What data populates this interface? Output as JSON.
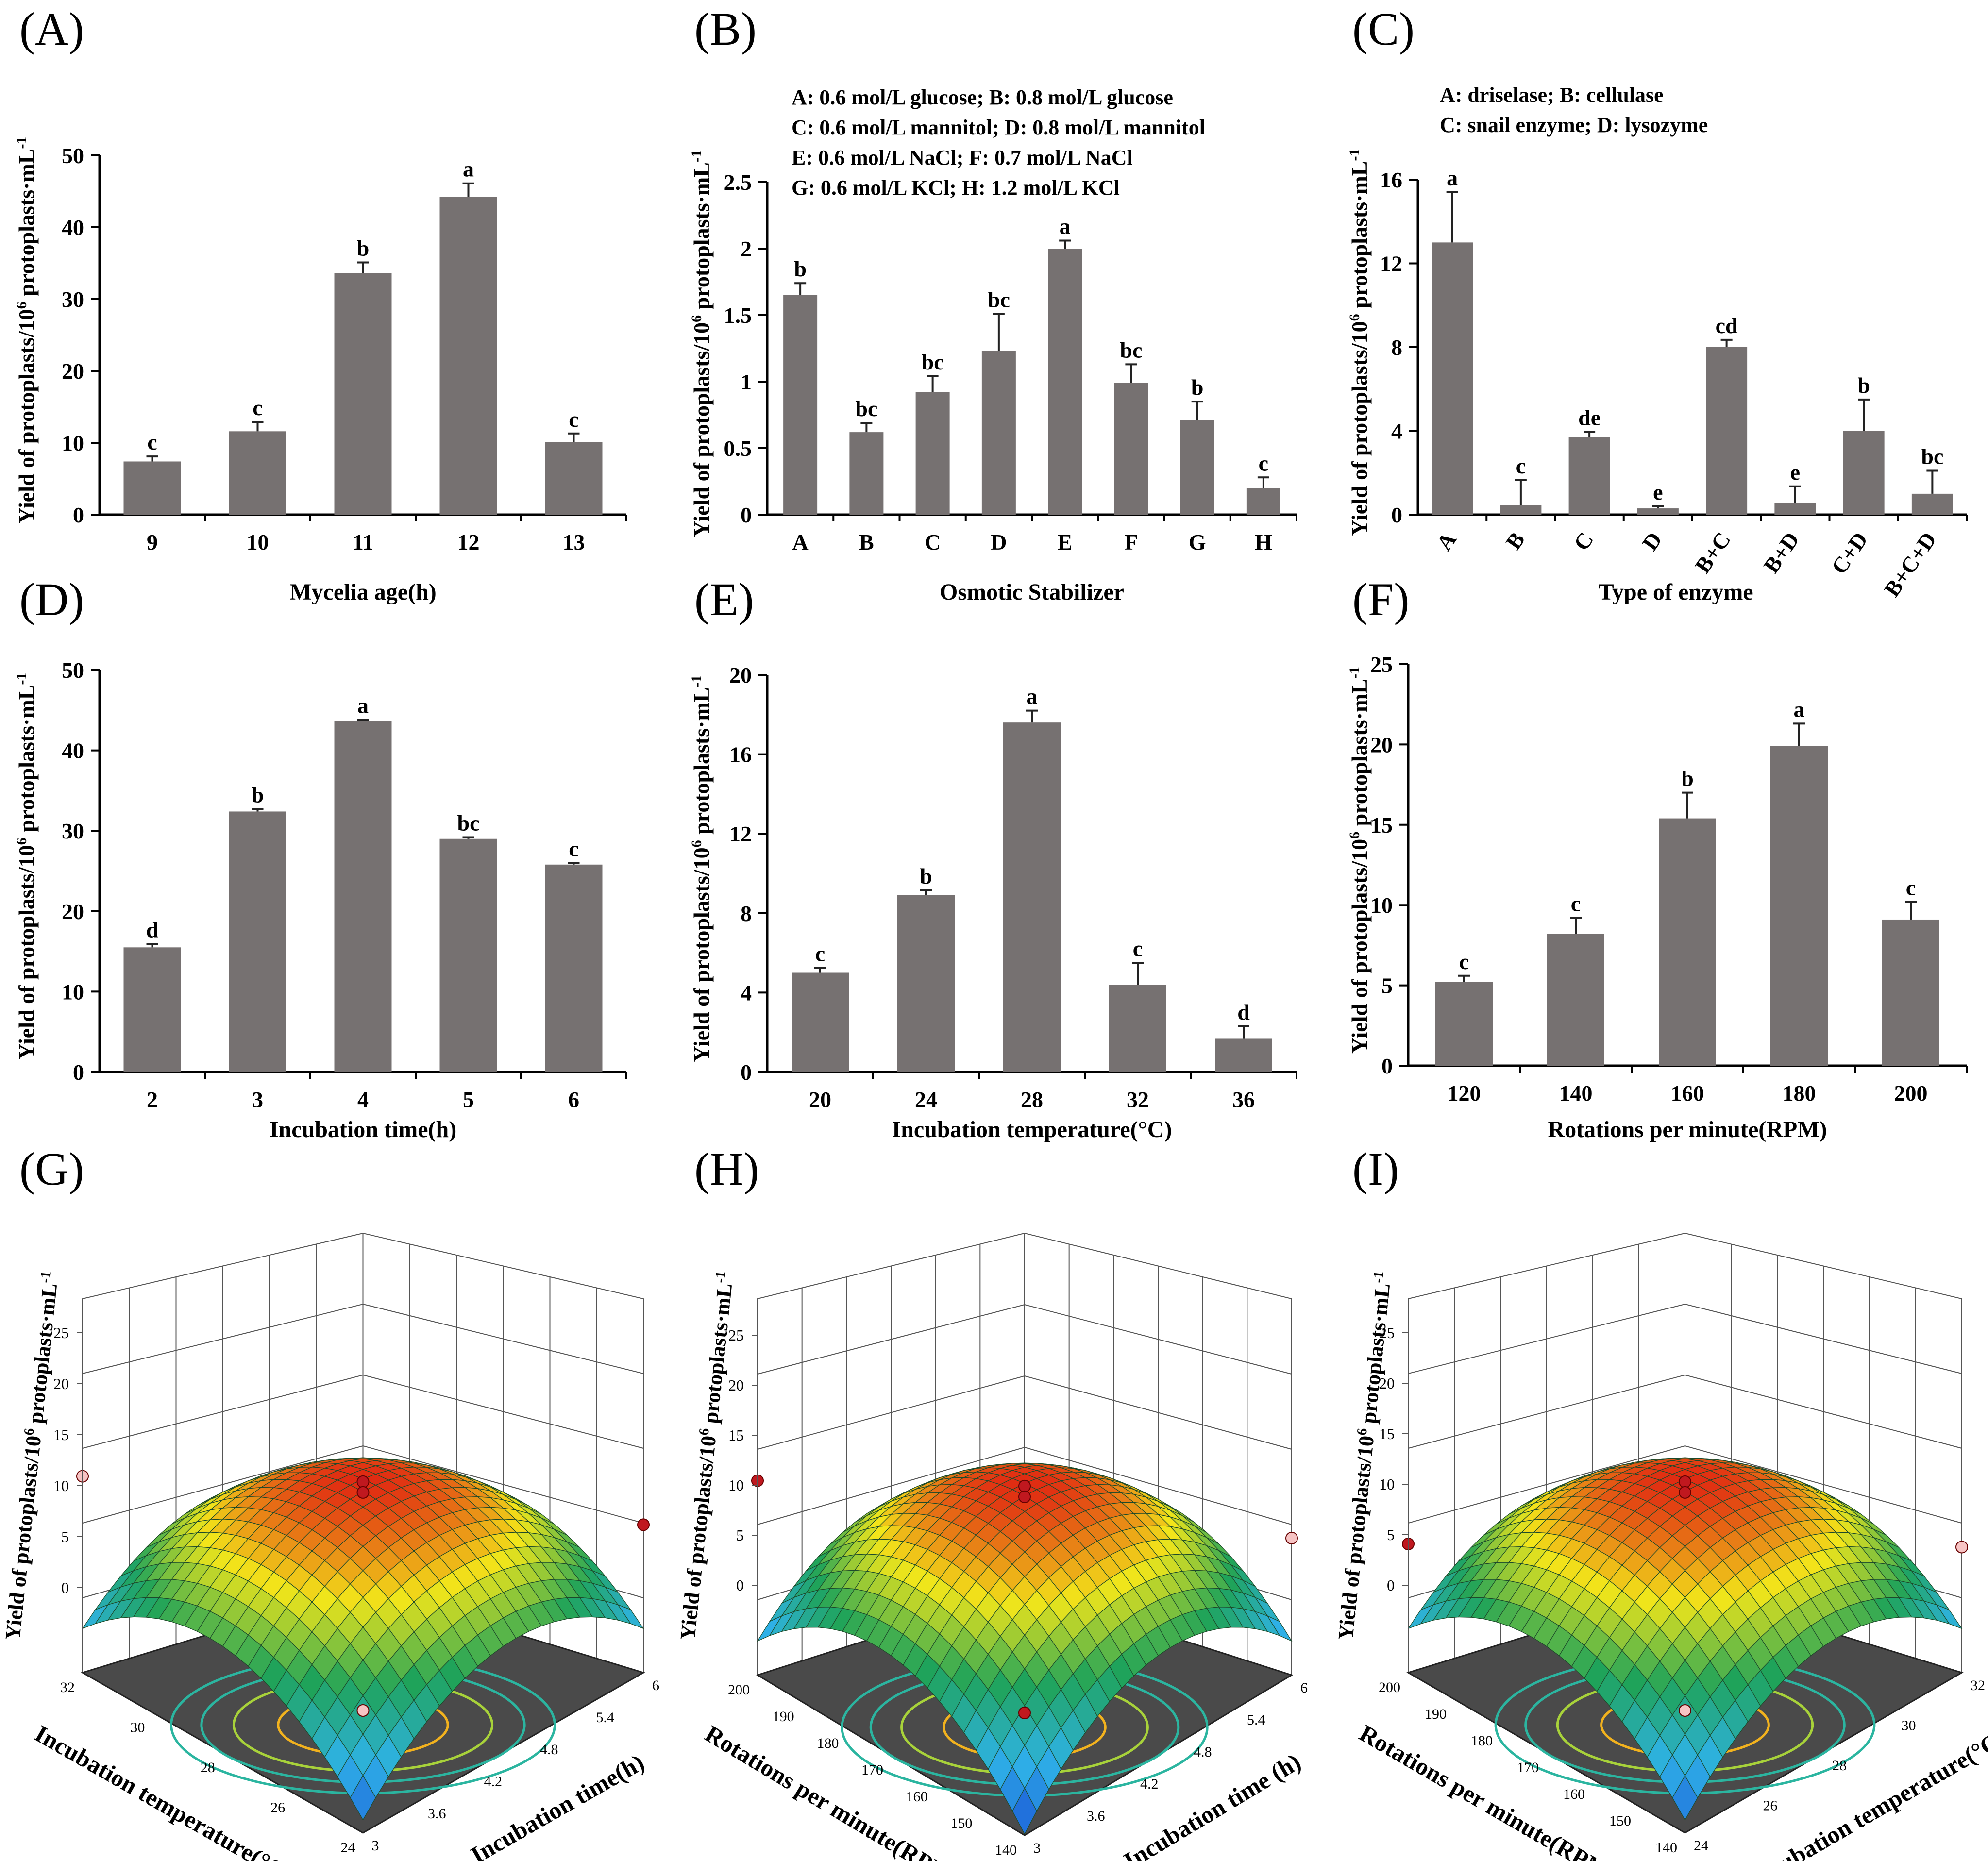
{
  "y_title": "Yield of protoplasts/10",
  "y_title_sup": "6",
  "y_title_tail": " protoplasts·mL",
  "y_title_tail_sup": "-1",
  "colors": {
    "bar": "#767171",
    "surface_low": "#1a4fd6",
    "surface_mid": "#2fb3e8",
    "surface_green": "#1fa35a",
    "surface_yellow": "#f2e61a",
    "surface_high": "#e02a12",
    "floor": "#4a4a4a",
    "contour_inner": "#f2b21e",
    "contour_mid": "#a8d23a",
    "contour_outer": "#2bb5a0",
    "marker_dark": "#c0181f",
    "marker_light": "#f7c4c4"
  },
  "chart_data": [
    {
      "panel": "(A)",
      "type": "bar",
      "categories": [
        "9",
        "10",
        "11",
        "12",
        "13"
      ],
      "values": [
        7.4,
        11.6,
        33.6,
        44.2,
        10.1
      ],
      "errors": [
        0.7,
        1.3,
        1.5,
        1.9,
        1.2
      ],
      "letters": [
        "c",
        "c",
        "b",
        "a",
        "c"
      ],
      "xlabel": "Mycelia age(h)",
      "ylim": [
        0,
        50
      ],
      "yticks": [
        "0",
        "10",
        "20",
        "30",
        "40",
        "50"
      ],
      "legend_lines": []
    },
    {
      "panel": "(B)",
      "type": "bar",
      "categories": [
        "A",
        "B",
        "C",
        "D",
        "E",
        "F",
        "G",
        "H"
      ],
      "values": [
        1.65,
        0.62,
        0.92,
        1.23,
        2.0,
        0.99,
        0.71,
        0.2
      ],
      "errors": [
        0.09,
        0.07,
        0.12,
        0.28,
        0.06,
        0.14,
        0.14,
        0.08
      ],
      "letters": [
        "b",
        "bc",
        "bc",
        "bc",
        "a",
        "bc",
        "b",
        "c"
      ],
      "xlabel": "Osmotic Stabilizer",
      "ylim": [
        0,
        2.5
      ],
      "yticks": [
        "0",
        "0.5",
        "1",
        "1.5",
        "2",
        "2.5"
      ],
      "legend_lines": [
        "A: 0.6 mol/L glucose; B: 0.8 mol/L glucose",
        "C: 0.6 mol/L mannitol; D: 0.8 mol/L mannitol",
        "E: 0.6 mol/L NaCl; F: 0.7 mol/L NaCl",
        "G: 0.6 mol/L KCl; H: 1.2 mol/L KCl"
      ]
    },
    {
      "panel": "(C)",
      "type": "bar",
      "categories": [
        "A",
        "B",
        "C",
        "D",
        "B+C",
        "B+D",
        "C+D",
        "B+C+D"
      ],
      "values": [
        13.0,
        0.45,
        3.7,
        0.3,
        8.0,
        0.55,
        4.0,
        1.0
      ],
      "errors": [
        2.4,
        1.2,
        0.25,
        0.1,
        0.35,
        0.8,
        1.5,
        1.1
      ],
      "letters": [
        "a",
        "c",
        "de",
        "e",
        "cd",
        "e",
        "b",
        "bc"
      ],
      "xlabel": "Type of enzyme",
      "ylim": [
        0,
        16
      ],
      "yticks": [
        "0",
        "4",
        "8",
        "12",
        "16"
      ],
      "legend_lines": [
        "A: driselase; B: cellulase",
        "C: snail enzyme; D: lysozyme"
      ]
    },
    {
      "panel": "(D)",
      "type": "bar",
      "categories": [
        "2",
        "3",
        "4",
        "5",
        "6"
      ],
      "values": [
        15.5,
        32.4,
        43.6,
        29.0,
        25.8
      ],
      "errors": [
        0.4,
        0.3,
        0.2,
        0.2,
        0.2
      ],
      "letters": [
        "d",
        "b",
        "a",
        "bc",
        "c"
      ],
      "xlabel": "Incubation time(h)",
      "ylim": [
        0,
        50
      ],
      "yticks": [
        "0",
        "10",
        "20",
        "30",
        "40",
        "50"
      ],
      "legend_lines": []
    },
    {
      "panel": "(E)",
      "type": "bar",
      "categories": [
        "20",
        "24",
        "28",
        "32",
        "36"
      ],
      "values": [
        5.0,
        8.9,
        17.6,
        4.4,
        1.7
      ],
      "errors": [
        0.25,
        0.25,
        0.6,
        1.1,
        0.6
      ],
      "letters": [
        "c",
        "b",
        "a",
        "c",
        "d"
      ],
      "xlabel": "Incubation temperature(°C)",
      "ylim": [
        0,
        20
      ],
      "yticks": [
        "0",
        "4",
        "8",
        "12",
        "16",
        "20"
      ],
      "legend_lines": []
    },
    {
      "panel": "(F)",
      "type": "bar",
      "categories": [
        "120",
        "140",
        "160",
        "180",
        "200"
      ],
      "values": [
        5.2,
        8.2,
        15.4,
        19.9,
        9.1
      ],
      "errors": [
        0.4,
        1.0,
        1.6,
        1.4,
        1.1
      ],
      "letters": [
        "c",
        "c",
        "b",
        "a",
        "c"
      ],
      "xlabel": "Rotations per minute(RPM)",
      "ylim": [
        0,
        25
      ],
      "yticks": [
        "0",
        "5",
        "10",
        "15",
        "20",
        "25"
      ],
      "legend_lines": []
    }
  ],
  "surfaces": [
    {
      "panel": "(G)",
      "type": "surface",
      "zlim": [
        0,
        25
      ],
      "zticks": [
        "0",
        "5",
        "10",
        "15",
        "20",
        "25"
      ],
      "left_axis_label": "Incubation temperature(°C)",
      "left_ticks": [
        "32",
        "30",
        "28",
        "26",
        "24"
      ],
      "right_axis_label": "Incubation time(h)",
      "right_ticks": [
        "3",
        "3.6",
        "4.2",
        "4.8",
        "5.4",
        "6"
      ],
      "peak": 20.8,
      "left_corner": 11.5,
      "right_corner": 8.5,
      "front_corner": 1.5
    },
    {
      "panel": "(H)",
      "type": "surface",
      "zlim": [
        0,
        25
      ],
      "zticks": [
        "0",
        "5",
        "10",
        "15",
        "20",
        "25"
      ],
      "left_axis_label": "Rotations per minute(RPM)",
      "left_ticks": [
        "200",
        "190",
        "180",
        "170",
        "160",
        "150",
        "140"
      ],
      "right_axis_label": "Incubation time (h)",
      "right_ticks": [
        "3",
        "3.6",
        "4.2",
        "4.8",
        "5.4",
        "6"
      ],
      "peak": 21.0,
      "left_corner": 11.0,
      "right_corner": 7.0,
      "front_corner": 0.3
    },
    {
      "panel": "(I)",
      "type": "surface",
      "zlim": [
        0,
        25
      ],
      "zticks": [
        "0",
        "5",
        "10",
        "15",
        "20",
        "25"
      ],
      "left_axis_label": "Rotations per minute(RPM)",
      "left_ticks": [
        "200",
        "190",
        "180",
        "170",
        "160",
        "150",
        "140"
      ],
      "right_axis_label": "Incubation temperature(°C)",
      "right_ticks": [
        "24",
        "26",
        "28",
        "30",
        "32"
      ],
      "peak": 21.0,
      "left_corner": 4.3,
      "right_corner": 6.0,
      "front_corner": 1.5
    }
  ]
}
